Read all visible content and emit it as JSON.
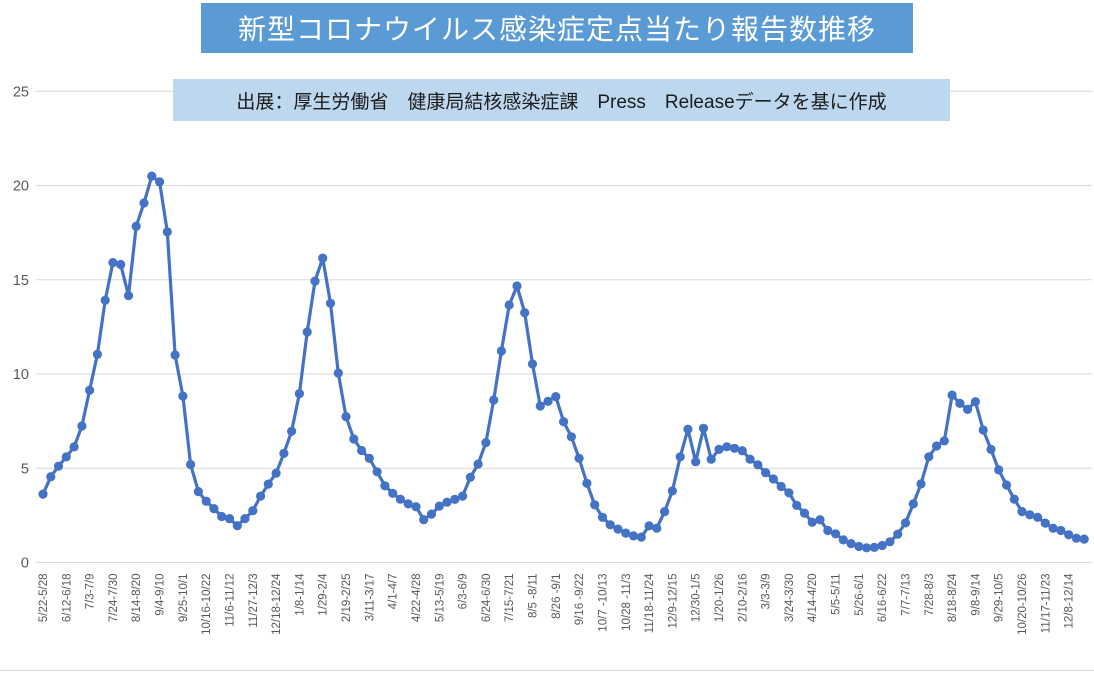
{
  "title": "新型コロナウイルス感染症定点当たり報告数推移",
  "source_note": "出展：厚生労働省　健康局結核感染症課　Press　Releaseデータを基に作成",
  "colors": {
    "title_bg": "#5B9BD5",
    "title_text": "#FFFFFF",
    "source_bg": "#BDD7EE",
    "line": "#4472C4",
    "marker": "#4472C4",
    "grid": "#D9D9D9",
    "axis_text": "#595959",
    "background": "#FFFFFF"
  },
  "chart_data": {
    "type": "line",
    "title": "新型コロナウイルス感染症定点当たり報告数推移",
    "xlabel": "",
    "ylabel": "",
    "ylim": [
      0,
      25
    ],
    "yticks": [
      0,
      5,
      10,
      15,
      20,
      25
    ],
    "grid": true,
    "legend": false,
    "marker": "circle",
    "x_tick_interval": 3,
    "x_labels": [
      "5/22-5/28",
      "6/12-6/18",
      "7/3-7/9",
      "7/24-7/30",
      "8/14-8/20",
      "9/4-9/10",
      "9/25-10/1",
      "10/16-10/22",
      "11/6-11/12",
      "11/27-12/3",
      "12/18-12/24",
      "1/8-1/14",
      "1/29-2/4",
      "2/19-2/25",
      "3/11-3/17",
      "4/1-4/7",
      "4/22-4/28",
      "5/13-5/19",
      "6/3-6/9",
      "6/24-6/30",
      "7/15-7/21",
      "8/5 -8/11",
      "8/26 -9/1",
      "9/16 -9/22",
      "10/7 -10/13",
      "10/28 -11/3",
      "11/18-11/24",
      "12/9-12/15",
      "12/30-1/5",
      "1/20-1/26",
      "2/10-2/16",
      "3/3-3/9",
      "3/24-3/30",
      "4/14-4/20",
      "5/5-5/11",
      "5/26-6/1",
      "6/16-6/22",
      "7/7-7/13",
      "7/28-8/3",
      "8/18-8/24",
      "9/8-9/14",
      "9/29-10/5",
      "10/20-10/26",
      "11/17-11/23",
      "12/8-12/14"
    ],
    "values": [
      3.63,
      4.55,
      5.11,
      5.6,
      6.13,
      7.24,
      9.14,
      11.04,
      13.91,
      15.91,
      15.81,
      14.16,
      17.84,
      19.07,
      20.5,
      20.19,
      17.54,
      11.01,
      8.83,
      5.2,
      3.76,
      3.25,
      2.86,
      2.44,
      2.33,
      1.95,
      2.33,
      2.75,
      3.52,
      4.16,
      4.74,
      5.79,
      6.96,
      8.96,
      12.23,
      14.93,
      16.15,
      13.75,
      10.05,
      7.74,
      6.55,
      5.94,
      5.53,
      4.81,
      4.07,
      3.67,
      3.36,
      3.11,
      2.96,
      2.27,
      2.57,
      2.99,
      3.2,
      3.35,
      3.52,
      4.52,
      5.22,
      6.36,
      8.62,
      11.22,
      13.66,
      14.67,
      13.25,
      10.53,
      8.3,
      8.55,
      8.8,
      7.47,
      6.67,
      5.53,
      4.2,
      3.06,
      2.4,
      2.0,
      1.77,
      1.56,
      1.41,
      1.35,
      1.94,
      1.82,
      2.7,
      3.8,
      5.61,
      7.07,
      5.35,
      7.12,
      5.48,
      6.0,
      6.14,
      6.06,
      5.93,
      5.48,
      5.18,
      4.77,
      4.43,
      4.03,
      3.7,
      3.03,
      2.62,
      2.14,
      2.27,
      1.7,
      1.52,
      1.2,
      1.0,
      0.85,
      0.78,
      0.8,
      0.9,
      1.1,
      1.5,
      2.1,
      3.11,
      4.17,
      5.61,
      6.18,
      6.45,
      8.88,
      8.44,
      8.12,
      8.53,
      7.03,
      6.0,
      4.91,
      4.11,
      3.36,
      2.7,
      2.53,
      2.4,
      2.09,
      1.82,
      1.7,
      1.47,
      1.29,
      1.24
    ]
  }
}
